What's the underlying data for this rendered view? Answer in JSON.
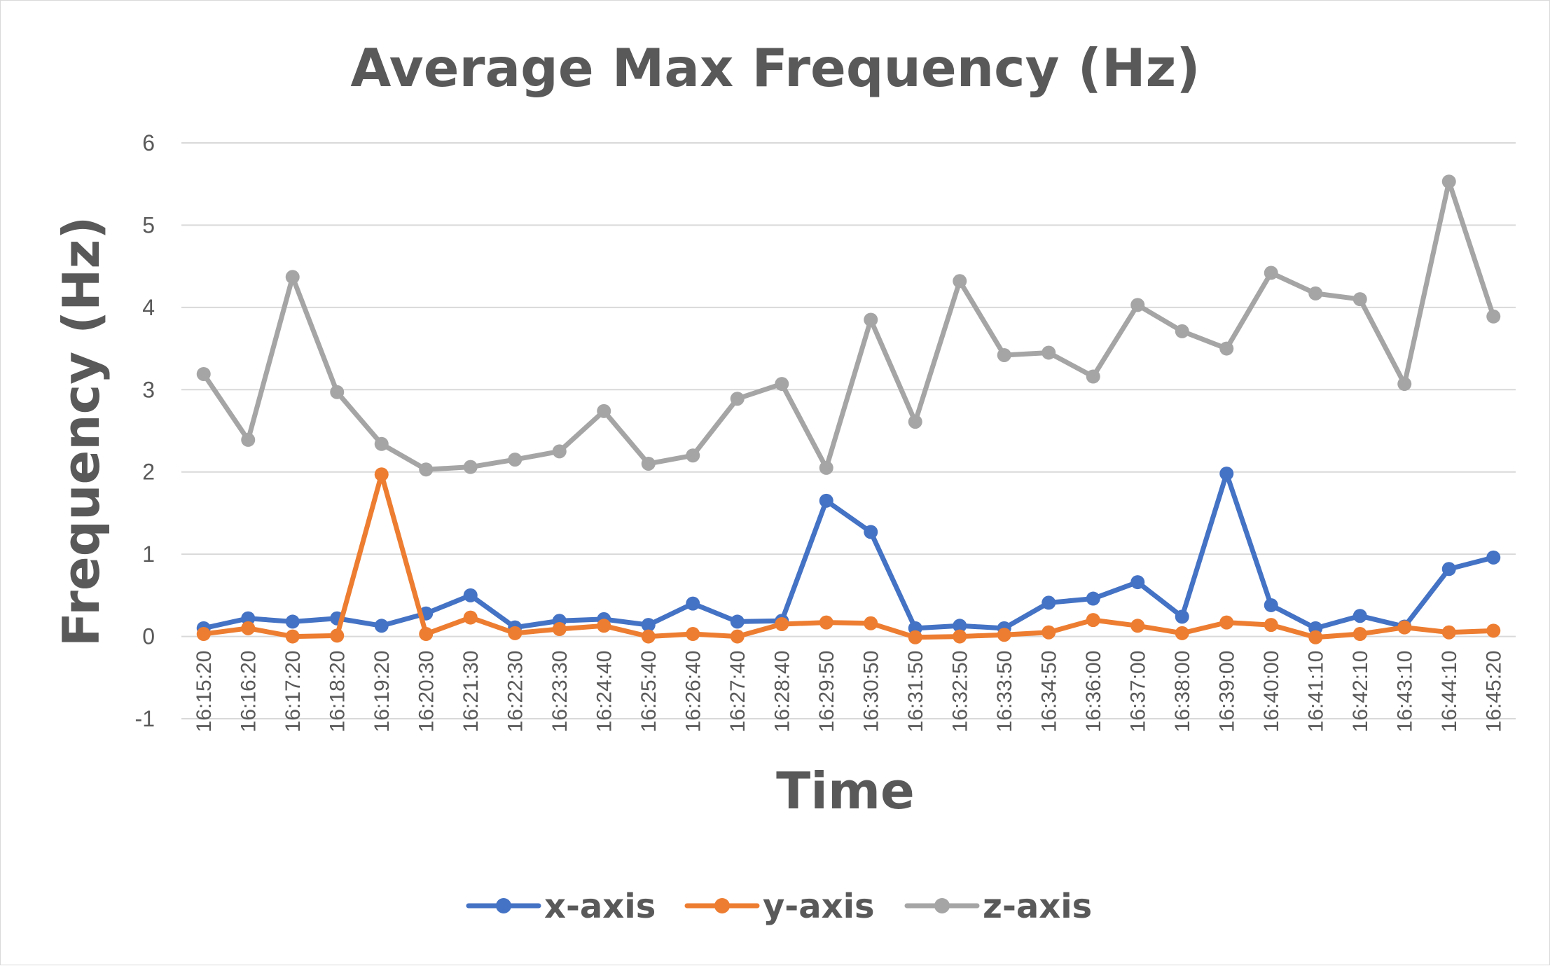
{
  "chart_data": {
    "type": "line",
    "title": "Average Max Frequency (Hz)",
    "xlabel": "Time",
    "ylabel": "Frequency (Hz)",
    "ylim": [
      -1,
      6
    ],
    "yticks": [
      "-1",
      "0",
      "1",
      "2",
      "3",
      "4",
      "5",
      "6"
    ],
    "grid": true,
    "legend_position": "bottom",
    "categories": [
      "16:15:20",
      "16:16:20",
      "16:17:20",
      "16:18:20",
      "16:19:20",
      "16:20:30",
      "16:21:30",
      "16:22:30",
      "16:23:30",
      "16:24:40",
      "16:25:40",
      "16:26:40",
      "16:27:40",
      "16:28:40",
      "16:29:50",
      "16:30:50",
      "16:31:50",
      "16:32:50",
      "16:33:50",
      "16:34:50",
      "16:36:00",
      "16:37:00",
      "16:38:00",
      "16:39:00",
      "16:40:00",
      "16:41:10",
      "16:42:10",
      "16:43:10",
      "16:44:10",
      "16:45:20"
    ],
    "series": [
      {
        "name": "x-axis",
        "color": "#4472c4",
        "values": [
          0.1,
          0.22,
          0.18,
          0.22,
          0.13,
          0.28,
          0.5,
          0.11,
          0.19,
          0.21,
          0.14,
          0.4,
          0.18,
          0.19,
          1.65,
          1.27,
          0.1,
          0.13,
          0.1,
          0.41,
          0.46,
          0.66,
          0.24,
          1.98,
          0.38,
          0.1,
          0.25,
          0.12,
          0.82,
          0.96
        ]
      },
      {
        "name": "y-axis",
        "color": "#ed7d31",
        "values": [
          0.03,
          0.1,
          0.0,
          0.01,
          1.97,
          0.03,
          0.23,
          0.04,
          0.09,
          0.13,
          0.0,
          0.03,
          0.0,
          0.15,
          0.17,
          0.16,
          -0.01,
          0.0,
          0.02,
          0.05,
          0.2,
          0.13,
          0.04,
          0.17,
          0.14,
          -0.01,
          0.03,
          0.11,
          0.05,
          0.07
        ]
      },
      {
        "name": "z-axis",
        "color": "#a5a5a5",
        "values": [
          3.19,
          2.39,
          4.37,
          2.97,
          2.34,
          2.03,
          2.06,
          2.15,
          2.25,
          2.74,
          2.1,
          2.2,
          2.89,
          3.07,
          2.05,
          3.85,
          2.61,
          4.32,
          3.42,
          3.45,
          3.16,
          4.03,
          3.71,
          3.5,
          4.42,
          4.17,
          4.1,
          3.07,
          5.53,
          3.89
        ]
      }
    ]
  }
}
